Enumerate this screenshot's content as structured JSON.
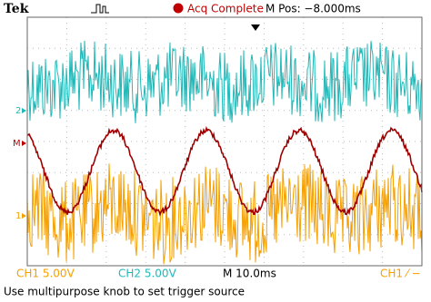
{
  "header": {
    "brand": "Tek",
    "status": "Acq Complete",
    "position": "M Pos: −8.000ms"
  },
  "markers": {
    "channel_2": "2",
    "math": "M",
    "channel_1": "1"
  },
  "status_bar": {
    "channel_1": "CH1  5.00V",
    "channel_2": "CH2  5.00V",
    "timebase": "M 10.0ms",
    "trigger": "CH1 ⁄ −"
  },
  "message": "Use multipurpose knob to set trigger source"
}
